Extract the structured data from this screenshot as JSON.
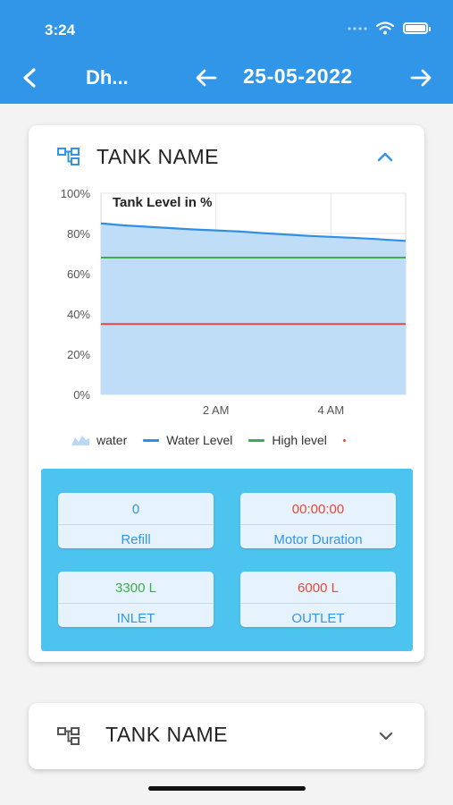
{
  "status_bar": {
    "time": "3:24"
  },
  "header": {
    "title": "Dh...",
    "date": "25-05-2022"
  },
  "colors": {
    "appbar": "#3196e8",
    "fill": "#c0ddf8",
    "water_level": "#2f8fe4",
    "high_level": "#3fab4d",
    "low_level": "#e4493a",
    "stats_panel": "#4dc3f0"
  },
  "tank_card": {
    "title": "TANK NAME",
    "expanded": true,
    "stats": [
      {
        "value": "0",
        "label": "Refill",
        "value_color": "#3196e8"
      },
      {
        "value": "00:00:00",
        "label": "Motor Duration",
        "value_color": "#e4493a"
      },
      {
        "value": "3300 L",
        "label": "INLET",
        "value_color": "#3fab4d"
      },
      {
        "value": "6000 L",
        "label": "OUTLET",
        "value_color": "#e4493a"
      }
    ]
  },
  "tank_card_2": {
    "title": "TANK NAME",
    "expanded": false
  },
  "chart_data": {
    "type": "area",
    "title": "Tank Level in %",
    "y_ticks": [
      "100%",
      "80%",
      "60%",
      "40%",
      "20%",
      "0%"
    ],
    "ylim": [
      0,
      100
    ],
    "x_ticks": [
      {
        "x": 2,
        "label": "2 AM"
      },
      {
        "x": 4,
        "label": "4 AM"
      }
    ],
    "xlim": [
      0,
      5.3
    ],
    "grid": true,
    "legend_position": "bottom",
    "legend": [
      "water",
      "Water Level",
      "High level"
    ],
    "series": [
      {
        "name": "Water Level",
        "x": [
          0,
          0.2,
          0.4,
          0.7,
          1.0,
          1.3,
          1.6,
          2.0,
          2.4,
          2.8,
          3.2,
          3.6,
          4.0,
          4.4,
          4.8,
          5.0,
          5.3
        ],
        "values": [
          85,
          84.5,
          84,
          83.5,
          83,
          82.5,
          82,
          81.5,
          81,
          80.2,
          79.5,
          78.8,
          78.3,
          77.8,
          77.2,
          76.8,
          76.3
        ]
      },
      {
        "name": "High level",
        "x": [
          0,
          5.3
        ],
        "values": [
          68,
          68
        ]
      },
      {
        "x": [
          0,
          5.3
        ],
        "values": [
          35,
          35
        ]
      }
    ]
  }
}
